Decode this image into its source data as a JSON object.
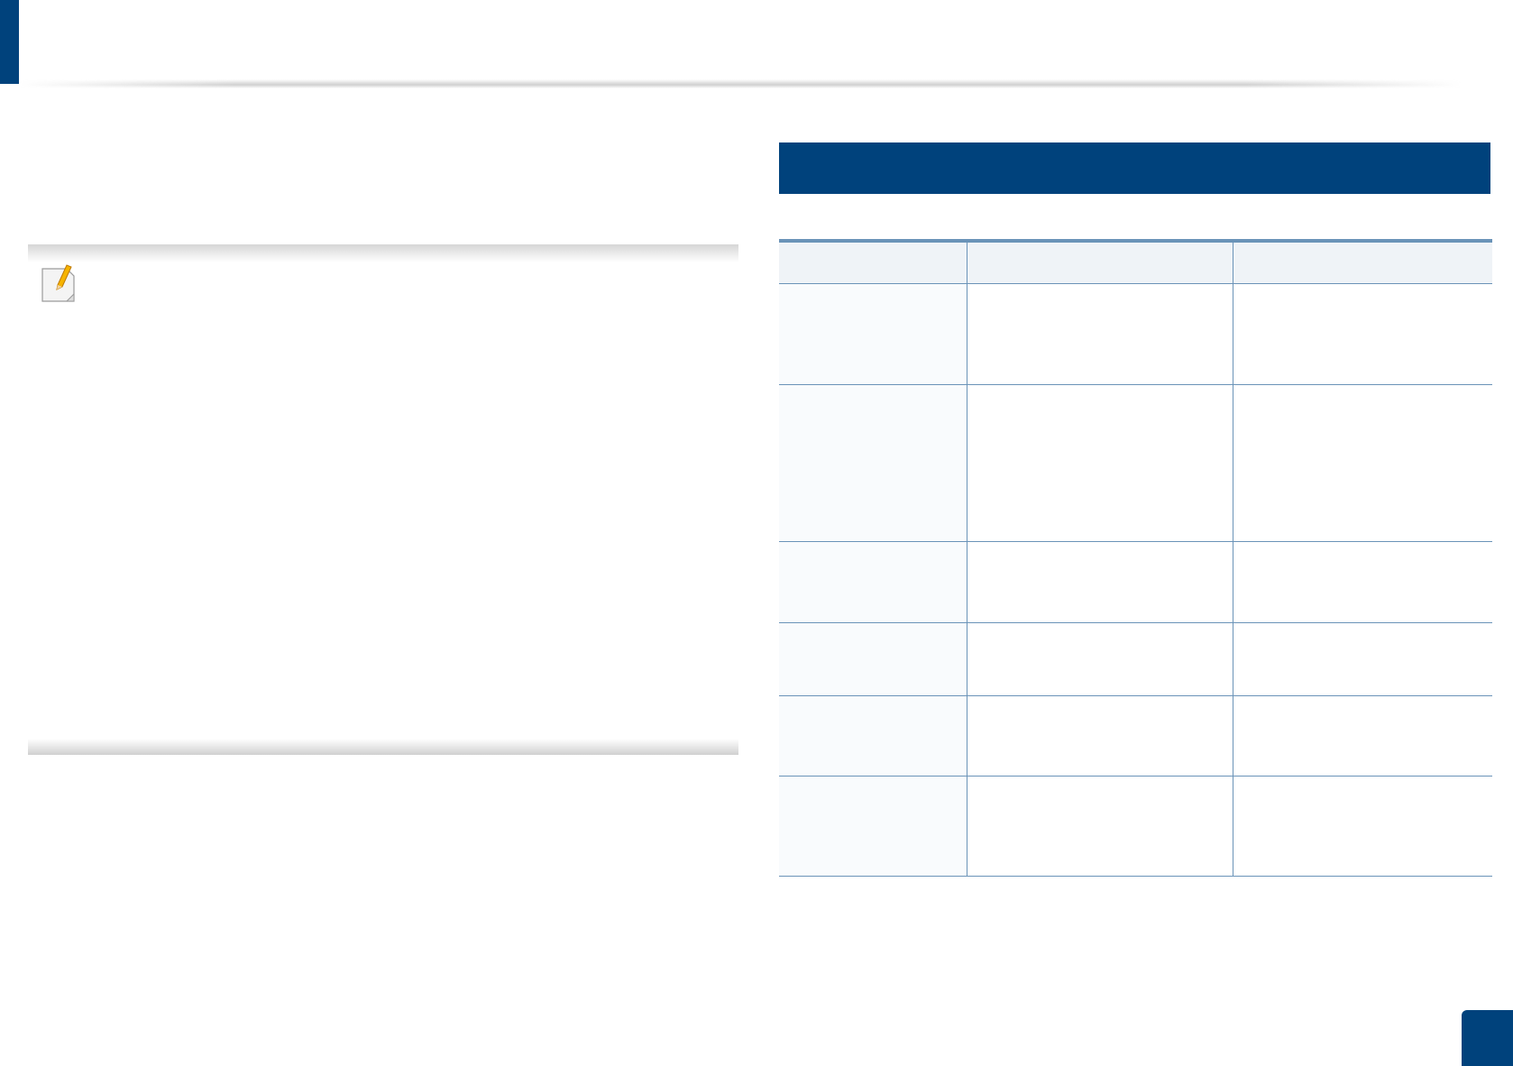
{
  "colors": {
    "brand_blue": "#00427c",
    "table_rule": "#6a93b8",
    "table_header_bg": "#eff3f7",
    "table_first_col_bg": "#f9fbfd"
  },
  "note": {
    "icon": "note-pencil-icon"
  },
  "section_header": {
    "title": ""
  },
  "table": {
    "headers": [
      "",
      "",
      ""
    ],
    "rows": [
      [
        "",
        "",
        ""
      ],
      [
        "",
        "",
        ""
      ],
      [
        "",
        "",
        ""
      ],
      [
        "",
        "",
        ""
      ],
      [
        "",
        "",
        ""
      ],
      [
        "",
        "",
        ""
      ]
    ]
  },
  "page_number": ""
}
